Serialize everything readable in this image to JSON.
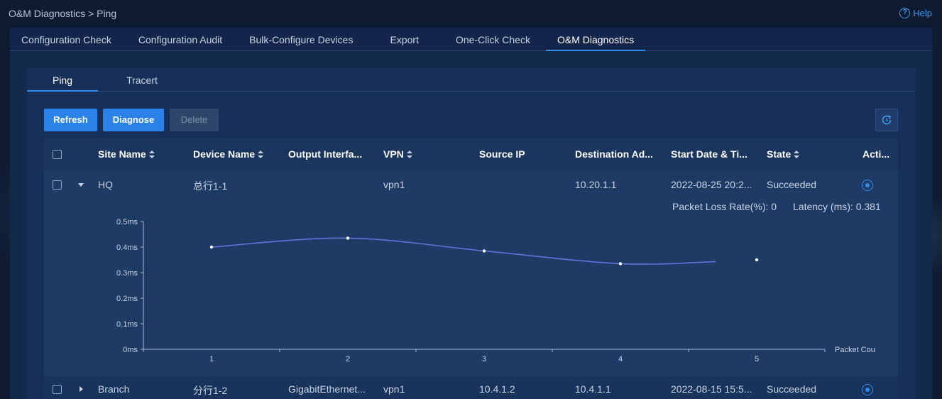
{
  "breadcrumb": "O&M Diagnostics > Ping",
  "help_label": "Help",
  "main_tabs": [
    {
      "label": "Configuration Check"
    },
    {
      "label": "Configuration Audit"
    },
    {
      "label": "Bulk-Configure Devices"
    },
    {
      "label": "Export"
    },
    {
      "label": "One-Click Check"
    },
    {
      "label": "O&M Diagnostics"
    }
  ],
  "sub_tabs": [
    {
      "label": "Ping"
    },
    {
      "label": "Tracert"
    }
  ],
  "toolbar": {
    "refresh_label": "Refresh",
    "diagnose_label": "Diagnose",
    "delete_label": "Delete"
  },
  "table": {
    "headers": {
      "site_name": "Site Name",
      "device_name": "Device Name",
      "output_interface": "Output Interfa...",
      "vpn": "VPN",
      "source_ip": "Source IP",
      "destination": "Destination Ad...",
      "start": "Start Date & Ti...",
      "state": "State",
      "action": "Acti..."
    },
    "rows": [
      {
        "site_name": "HQ",
        "device_name": "总行1-1",
        "output_interface": "",
        "vpn": "vpn1",
        "source_ip": "",
        "destination": "10.20.1.1",
        "start": "2022-08-25 20:2...",
        "state": "Succeeded",
        "expanded": true
      },
      {
        "site_name": "Branch",
        "device_name": "分行1-2",
        "output_interface": "GigabitEthernet...",
        "vpn": "vpn1",
        "source_ip": "10.4.1.2",
        "destination": "10.4.1.1",
        "start": "2022-08-15 15:5...",
        "state": "Succeeded",
        "expanded": false
      }
    ]
  },
  "detail": {
    "packet_loss": "Packet Loss Rate(%): 0",
    "latency": "Latency (ms): 0.381"
  },
  "chart_data": {
    "type": "line",
    "x": [
      1,
      2,
      3,
      4,
      5
    ],
    "categories": [
      "1",
      "2",
      "3",
      "4",
      "5"
    ],
    "values": [
      0.4,
      0.435,
      0.385,
      0.335,
      0.35
    ],
    "ylim": [
      0,
      0.5
    ],
    "yticks": [
      "0ms",
      "0.1ms",
      "0.2ms",
      "0.3ms",
      "0.4ms",
      "0.5ms"
    ],
    "xlabel": "Packet Cou",
    "ylabel": "",
    "title": "",
    "grid": false,
    "line_color": "#5b74d6"
  }
}
